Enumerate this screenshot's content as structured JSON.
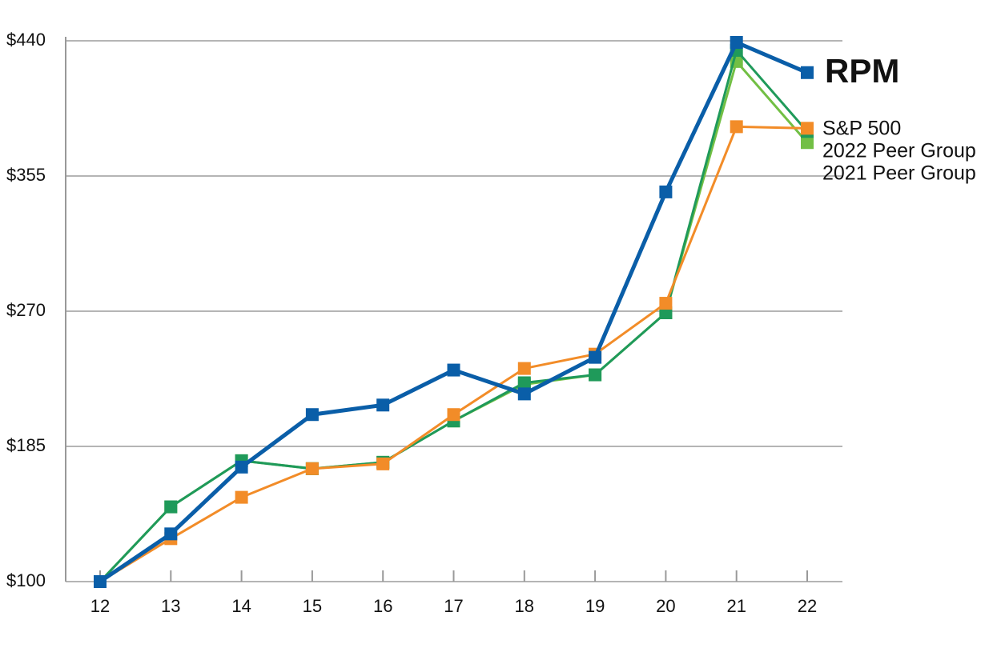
{
  "chart_data": {
    "type": "line",
    "categories": [
      "12",
      "13",
      "14",
      "15",
      "16",
      "17",
      "18",
      "19",
      "20",
      "21",
      "22"
    ],
    "ylim": [
      100,
      440
    ],
    "yticks": [
      {
        "value": 100,
        "label": "$100"
      },
      {
        "value": 185,
        "label": "$185"
      },
      {
        "value": 270,
        "label": "$270"
      },
      {
        "value": 355,
        "label": "$355"
      },
      {
        "value": 440,
        "label": "$440"
      }
    ],
    "grid": true,
    "series": [
      {
        "name": "RPM",
        "color": "#0a5ea8",
        "values": [
          100,
          130,
          172,
          205,
          211,
          233,
          218,
          241,
          345,
          439,
          420
        ]
      },
      {
        "name": "S&P 500",
        "color": "#f28c28",
        "values": [
          100,
          127,
          153,
          171,
          174,
          205,
          234,
          243,
          275,
          386,
          385
        ]
      },
      {
        "name": "2022 Peer Group",
        "color": "#1f9a5a",
        "values": [
          100,
          147,
          176,
          171,
          175,
          201,
          225,
          230,
          269,
          434,
          383
        ]
      },
      {
        "name": "2021 Peer Group",
        "color": "#72bf44",
        "values": [
          100,
          147,
          176,
          171,
          175,
          201,
          224,
          230,
          269,
          427,
          376
        ]
      }
    ]
  }
}
